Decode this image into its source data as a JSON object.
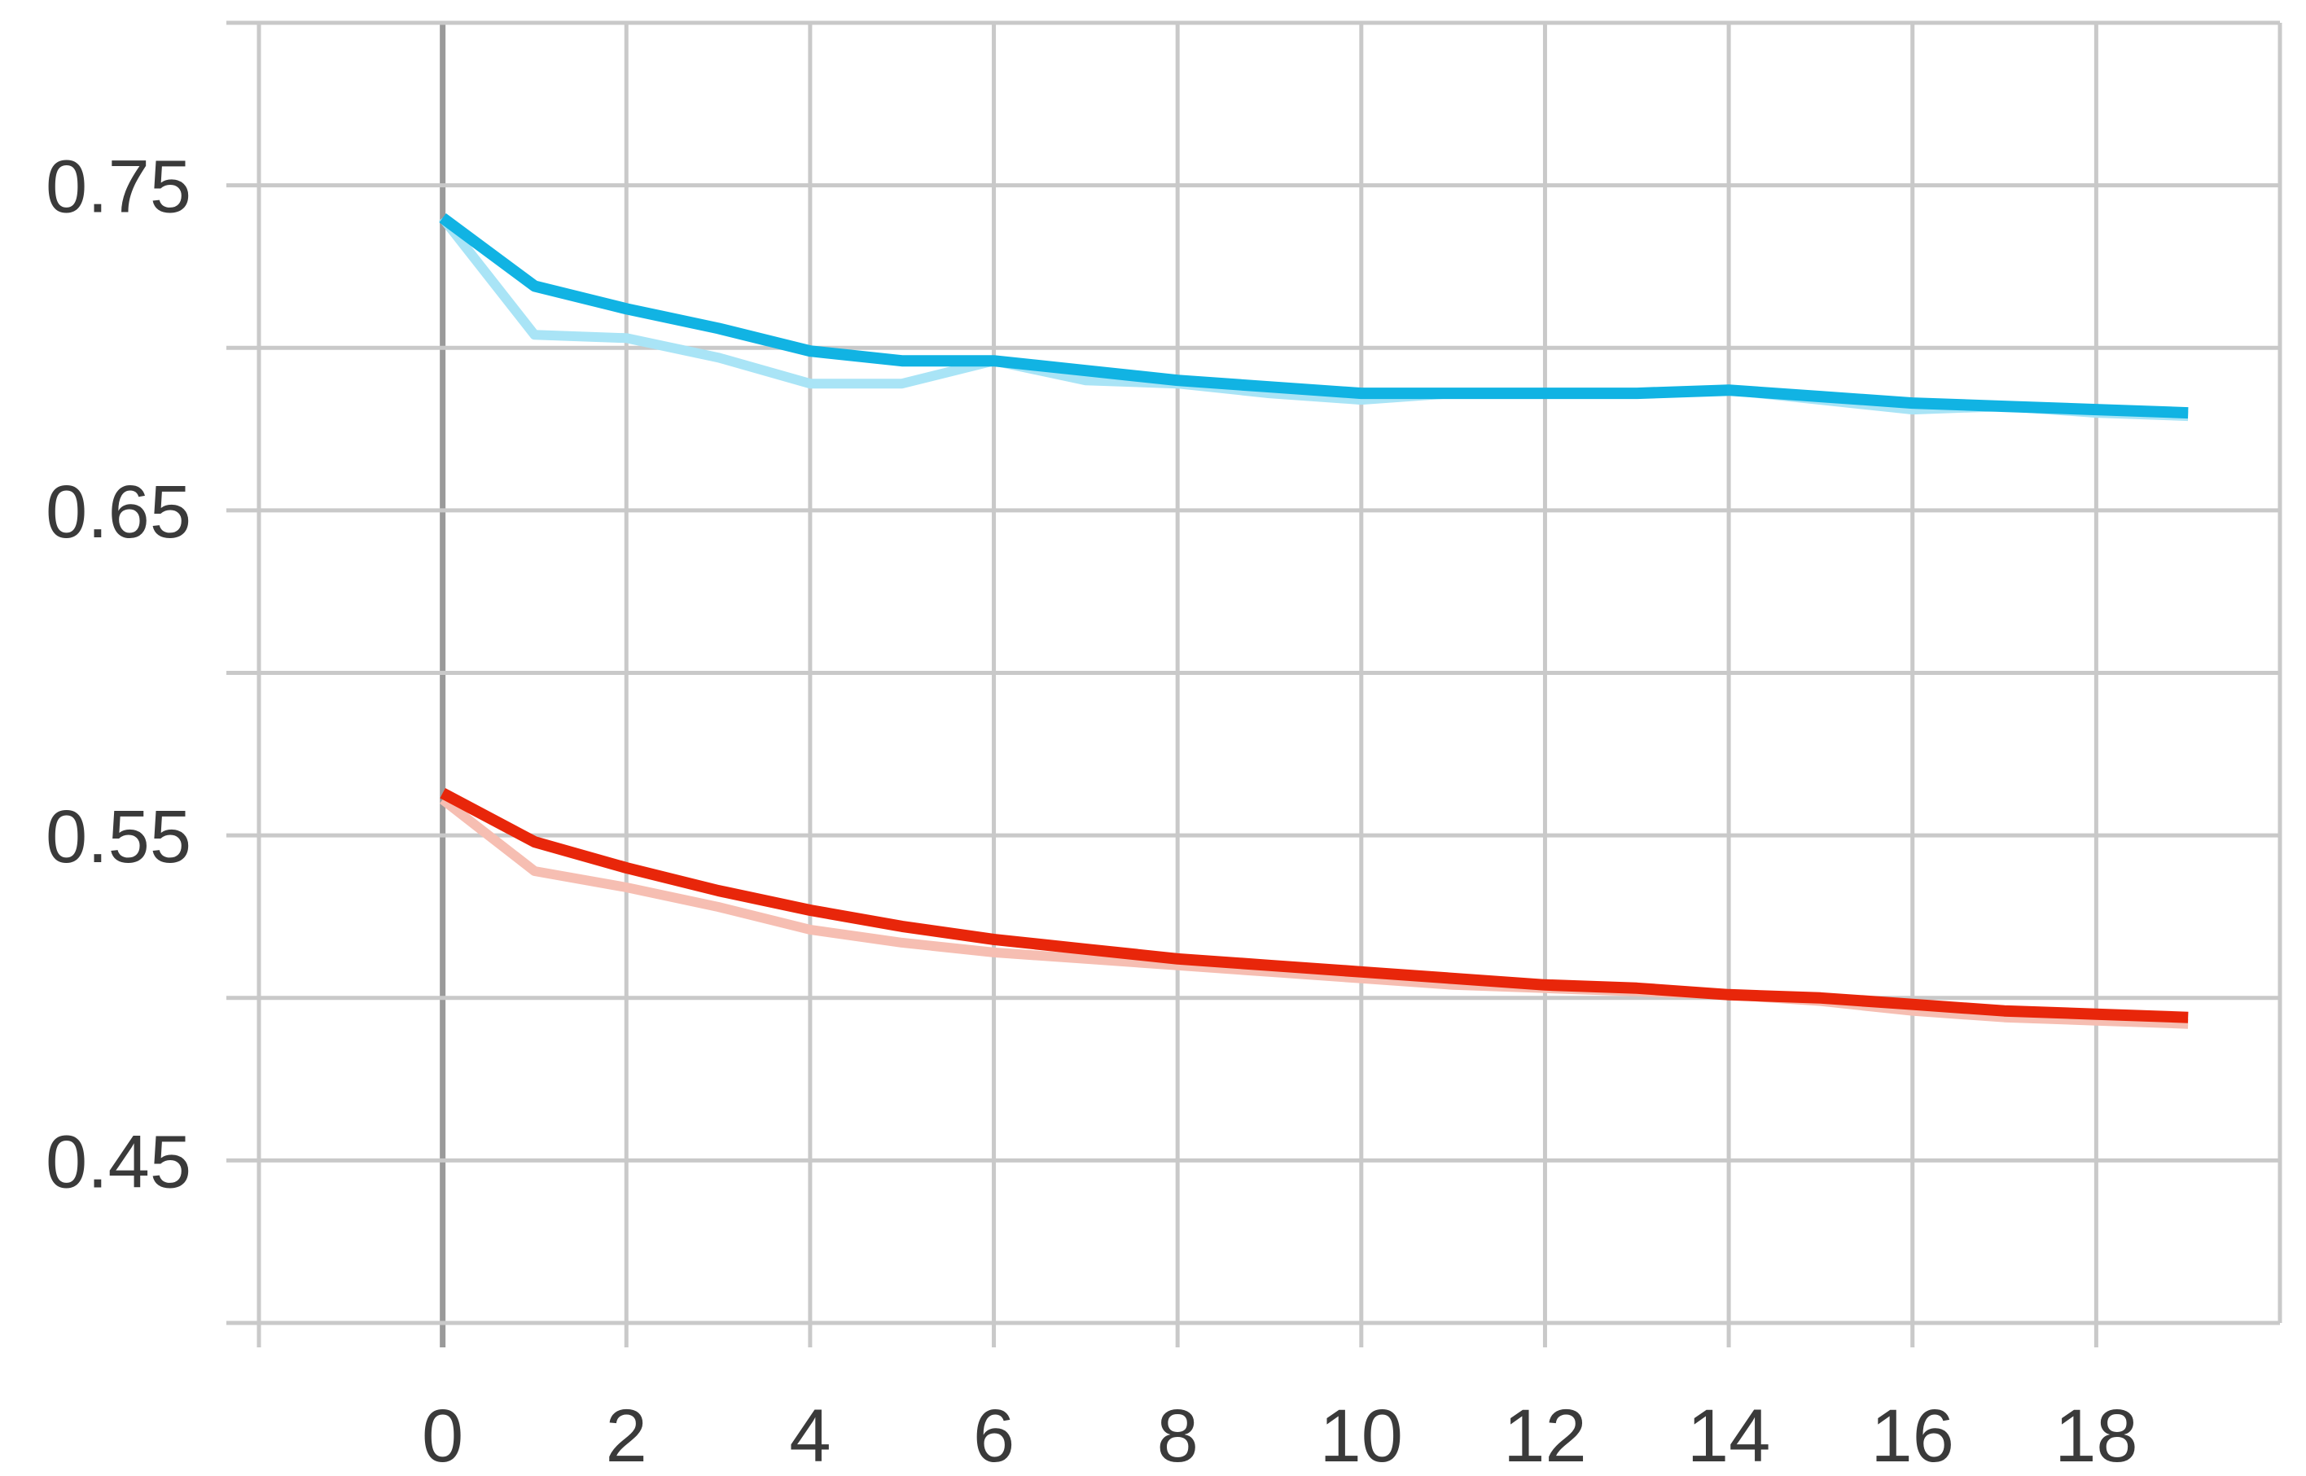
{
  "chart_data": {
    "type": "line",
    "title": "",
    "xlabel": "",
    "ylabel": "",
    "xlim": [
      -2,
      20
    ],
    "ylim": [
      0.4,
      0.8
    ],
    "x_ticks": [
      0,
      2,
      4,
      6,
      8,
      10,
      12,
      14,
      16,
      18
    ],
    "y_ticks": [
      0.45,
      0.55,
      0.65,
      0.75
    ],
    "y_grid": [
      0.45,
      0.5,
      0.55,
      0.6,
      0.65,
      0.7,
      0.75,
      0.8
    ],
    "x_tick_labels": [
      "0",
      "2",
      "4",
      "6",
      "8",
      "10",
      "12",
      "14",
      "16",
      "18"
    ],
    "y_tick_labels": [
      "0.45",
      "0.55",
      "0.65",
      "0.75"
    ],
    "grid": true,
    "series": [
      {
        "color": "#11b3e3",
        "x": [
          0,
          1,
          2,
          3,
          4,
          5,
          6,
          7,
          8,
          9,
          10,
          11,
          12,
          13,
          14,
          15,
          16,
          17,
          18,
          19
        ],
        "values": [
          0.74,
          0.719,
          0.712,
          0.706,
          0.699,
          0.696,
          0.696,
          0.693,
          0.69,
          0.688,
          0.686,
          0.686,
          0.686,
          0.686,
          0.687,
          0.685,
          0.683,
          0.682,
          0.681,
          0.68
        ]
      },
      {
        "color": "#a9e4f6",
        "x": [
          0,
          1,
          2,
          3,
          4,
          5,
          6,
          7,
          8,
          9,
          10,
          11,
          12,
          13,
          14,
          15,
          16,
          17,
          18,
          19
        ],
        "values": [
          0.74,
          0.704,
          0.703,
          0.697,
          0.689,
          0.689,
          0.696,
          0.69,
          0.689,
          0.686,
          0.684,
          0.686,
          0.686,
          0.686,
          0.687,
          0.684,
          0.681,
          0.682,
          0.68,
          0.679
        ]
      },
      {
        "color": "#e8260a",
        "x": [
          0,
          1,
          2,
          3,
          4,
          5,
          6,
          7,
          8,
          9,
          10,
          11,
          12,
          13,
          14,
          15,
          16,
          17,
          18,
          19
        ],
        "values": [
          0.563,
          0.548,
          0.54,
          0.533,
          0.527,
          0.522,
          0.518,
          0.515,
          0.512,
          0.51,
          0.508,
          0.506,
          0.504,
          0.503,
          0.501,
          0.5,
          0.498,
          0.496,
          0.495,
          0.494
        ]
      },
      {
        "color": "#f6beb2",
        "x": [
          0,
          1,
          2,
          3,
          4,
          5,
          6,
          7,
          8,
          9,
          10,
          11,
          12,
          13,
          14,
          15,
          16,
          17,
          18,
          19
        ],
        "values": [
          0.561,
          0.539,
          0.534,
          0.528,
          0.521,
          0.517,
          0.514,
          0.512,
          0.51,
          0.508,
          0.506,
          0.504,
          0.503,
          0.502,
          0.501,
          0.499,
          0.496,
          0.494,
          0.493,
          0.492
        ]
      }
    ]
  }
}
